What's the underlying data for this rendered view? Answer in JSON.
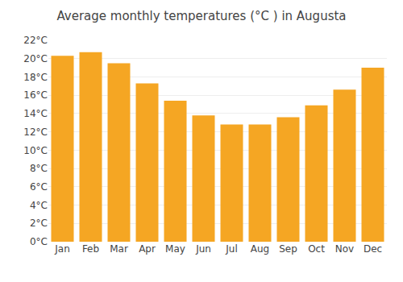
{
  "chart_data": {
    "type": "bar",
    "title": "Average monthly temperatures (°C ) in Augusta",
    "categories": [
      "Jan",
      "Feb",
      "Mar",
      "Apr",
      "May",
      "Jun",
      "Jul",
      "Aug",
      "Sep",
      "Oct",
      "Nov",
      "Dec"
    ],
    "values": [
      20.3,
      20.7,
      19.5,
      17.3,
      15.4,
      13.8,
      12.8,
      12.8,
      13.6,
      14.9,
      16.6,
      19.0
    ],
    "color": "#F5A623",
    "ylim": [
      0,
      22
    ],
    "yticks": [
      {
        "value": 0,
        "label": "0°C"
      },
      {
        "value": 2,
        "label": "2°C"
      },
      {
        "value": 4,
        "label": "4°C"
      },
      {
        "value": 6,
        "label": "6°C"
      },
      {
        "value": 8,
        "label": "8°C"
      },
      {
        "value": 10,
        "label": "10°C"
      },
      {
        "value": 12,
        "label": "12°C"
      },
      {
        "value": 14,
        "label": "14°C"
      },
      {
        "value": 16,
        "label": "16°C"
      },
      {
        "value": 18,
        "label": "18°C"
      },
      {
        "value": 20,
        "label": "20°C"
      },
      {
        "value": 22,
        "label": "22°C"
      }
    ],
    "grid": true
  }
}
